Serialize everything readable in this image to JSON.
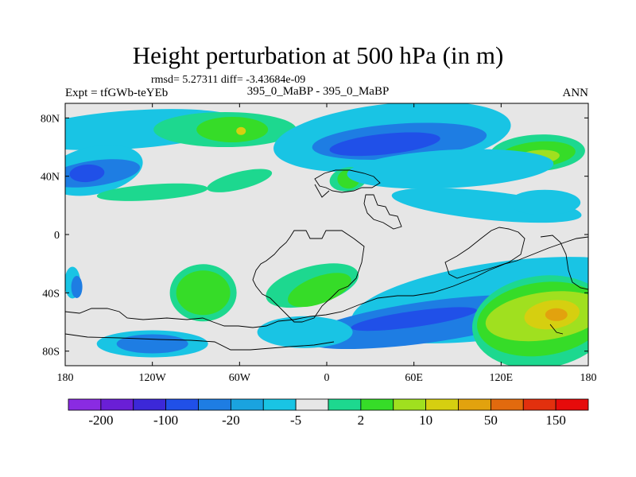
{
  "title": "Height perturbation at 500 hPa (in m)",
  "stats": "rmsd= 5.27311 diff= -3.43684e-09",
  "expt": "Expt = tfGWb-teYEb",
  "case": "395_0_MaBP - 395_0_MaBP",
  "season": "ANN",
  "chart_data": {
    "type": "filled-contour-map",
    "title": "Height perturbation at 500 hPa (in m)",
    "variable": "500 hPa height perturbation",
    "units": "m",
    "x_axis": {
      "range": [
        -180,
        180
      ],
      "ticks": [
        {
          "value": -180,
          "label": "180"
        },
        {
          "value": -120,
          "label": "120W"
        },
        {
          "value": -60,
          "label": "60W"
        },
        {
          "value": 0,
          "label": "0"
        },
        {
          "value": 60,
          "label": "60E"
        },
        {
          "value": 120,
          "label": "120E"
        },
        {
          "value": 180,
          "label": "180"
        }
      ]
    },
    "y_axis": {
      "range": [
        -90,
        90
      ],
      "ticks": [
        {
          "value": 80,
          "label": "80N"
        },
        {
          "value": 40,
          "label": "40N"
        },
        {
          "value": 0,
          "label": "0"
        },
        {
          "value": -40,
          "label": "40S"
        },
        {
          "value": -80,
          "label": "80S"
        }
      ]
    },
    "colorbar": {
      "bins": [
        "#8a2be2",
        "#6a1fd6",
        "#3c28d8",
        "#2050e8",
        "#1e7de3",
        "#1aa3df",
        "#19c4e4",
        "#e6e6e6",
        "#1dd88f",
        "#36dc28",
        "#a0e01f",
        "#d6cf10",
        "#e2a20e",
        "#e26a0e",
        "#e2300e",
        "#e60b0b"
      ],
      "labels": [
        {
          "text": "-200",
          "at_boundary": 1
        },
        {
          "text": "-100",
          "at_boundary": 3
        },
        {
          "text": "-20",
          "at_boundary": 5
        },
        {
          "text": "-5",
          "at_boundary": 7
        },
        {
          "text": "2",
          "at_boundary": 9
        },
        {
          "text": "10",
          "at_boundary": 11
        },
        {
          "text": "50",
          "at_boundary": 13
        },
        {
          "text": "150",
          "at_boundary": 15
        }
      ]
    },
    "features": [
      {
        "lon": -135,
        "lat": 72,
        "level": "cyan"
      },
      {
        "lon": -70,
        "lat": 72,
        "level": "green-light"
      },
      {
        "lon": -65,
        "lat": 72,
        "level": "green"
      },
      {
        "lon": -59,
        "lat": 71,
        "level": "yellow"
      },
      {
        "lon": 45,
        "lat": 67,
        "level": "cyan"
      },
      {
        "lon": 50,
        "lat": 64,
        "level": "blue-light"
      },
      {
        "lon": 40,
        "lat": 62,
        "level": "blue"
      },
      {
        "lon": 145,
        "lat": 56,
        "level": "green-light"
      },
      {
        "lon": 145,
        "lat": 55,
        "level": "green"
      },
      {
        "lon": 145,
        "lat": 53,
        "level": "lime"
      },
      {
        "lon": -160,
        "lat": 44,
        "level": "cyan"
      },
      {
        "lon": -160,
        "lat": 42,
        "level": "blue-light"
      },
      {
        "lon": -165,
        "lat": 42,
        "level": "blue"
      },
      {
        "lon": -120,
        "lat": 29,
        "level": "green-light"
      },
      {
        "lon": -60,
        "lat": 37,
        "level": "green-light"
      },
      {
        "lon": 15,
        "lat": 38,
        "level": "green-light"
      },
      {
        "lon": 15,
        "lat": 38,
        "level": "green"
      },
      {
        "lon": 85,
        "lat": 45,
        "level": "cyan"
      },
      {
        "lon": 110,
        "lat": 20,
        "level": "cyan"
      },
      {
        "lon": 150,
        "lat": 22,
        "level": "cyan"
      },
      {
        "lon": -175,
        "lat": -33,
        "level": "cyan"
      },
      {
        "lon": -172,
        "lat": -36,
        "level": "blue-light"
      },
      {
        "lon": -85,
        "lat": -40,
        "level": "green-light"
      },
      {
        "lon": -85,
        "lat": -40,
        "level": "green"
      },
      {
        "lon": -120,
        "lat": -75,
        "level": "cyan"
      },
      {
        "lon": -120,
        "lat": -75,
        "level": "blue-light"
      },
      {
        "lon": -10,
        "lat": -35,
        "level": "green-light"
      },
      {
        "lon": -5,
        "lat": -38,
        "level": "green"
      },
      {
        "lon": 120,
        "lat": -45,
        "level": "cyan"
      },
      {
        "lon": 70,
        "lat": -60,
        "level": "blue-light"
      },
      {
        "lon": 60,
        "lat": -58,
        "level": "blue"
      },
      {
        "lon": -15,
        "lat": -67,
        "level": "cyan"
      },
      {
        "lon": 148,
        "lat": -60,
        "level": "green-light"
      },
      {
        "lon": 148,
        "lat": -58,
        "level": "green"
      },
      {
        "lon": 150,
        "lat": -56,
        "level": "lime"
      },
      {
        "lon": 155,
        "lat": -55,
        "level": "yellow"
      },
      {
        "lon": 158,
        "lat": -55,
        "level": "orange"
      }
    ]
  }
}
